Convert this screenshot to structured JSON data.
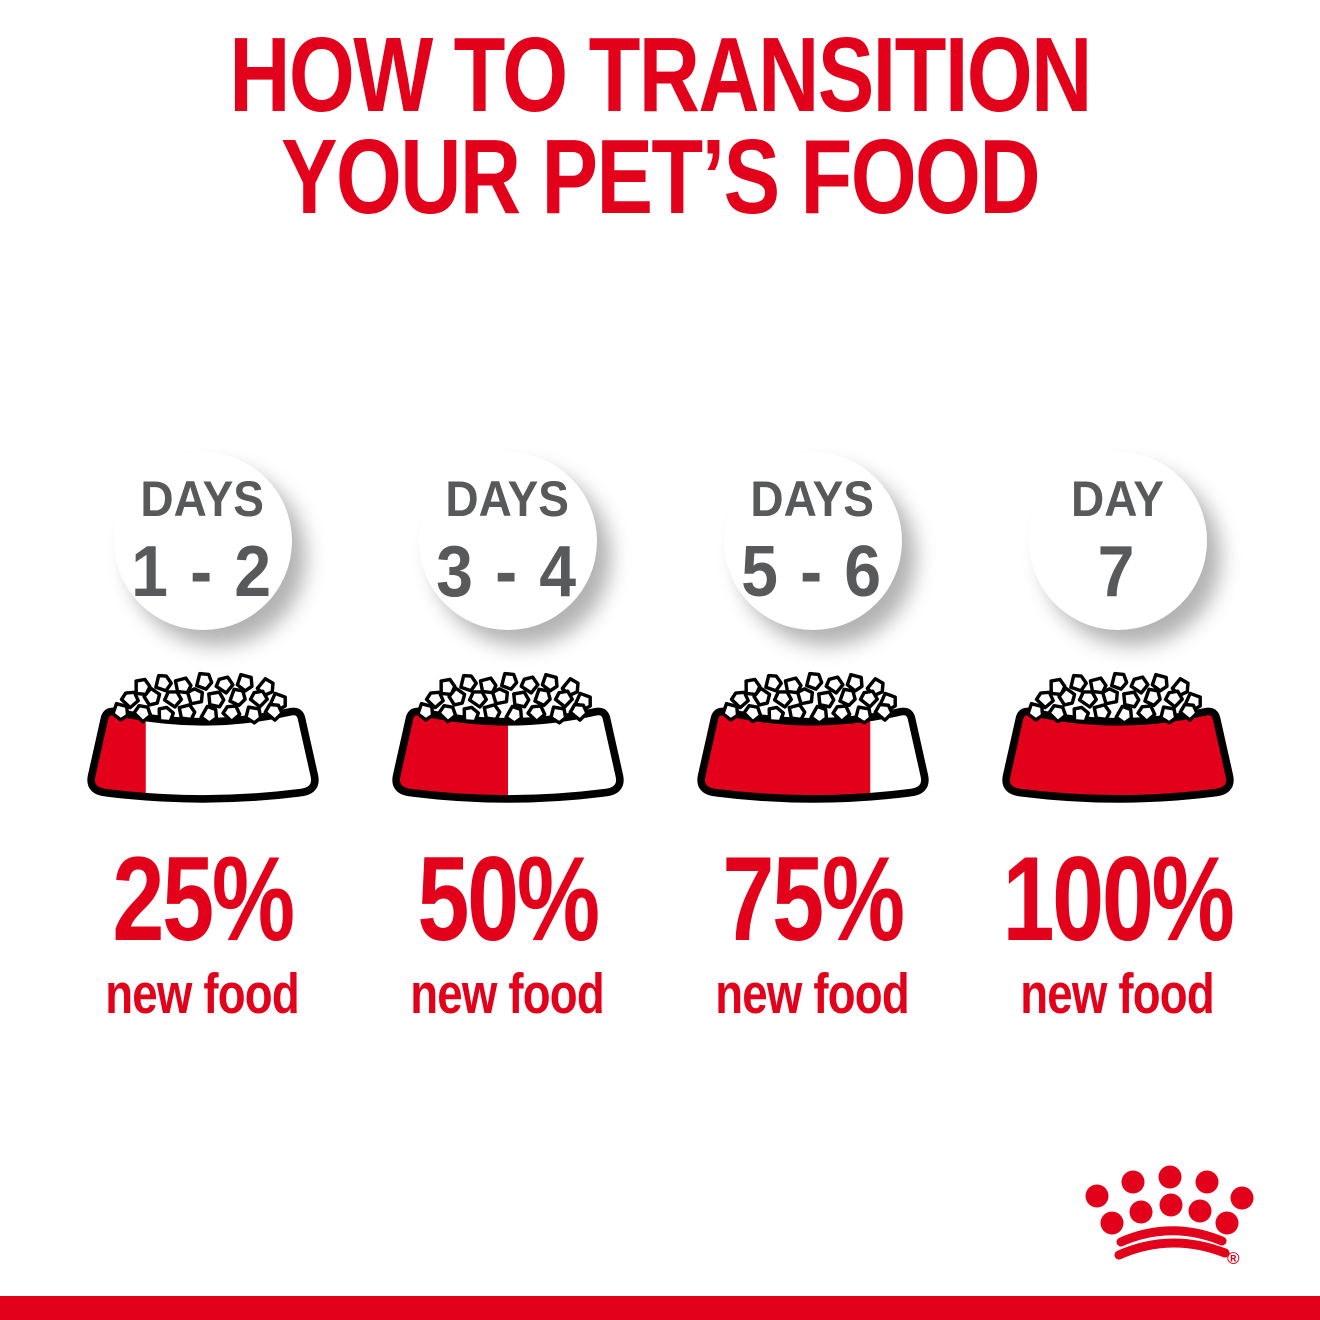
{
  "title": {
    "line1": "HOW TO TRANSITION",
    "line2": "YOUR PET’S FOOD"
  },
  "columns": [
    {
      "day_label": "DAYS",
      "day_value": "1 - 2",
      "percent": "25%",
      "percent_value": 25,
      "caption": "new food"
    },
    {
      "day_label": "DAYS",
      "day_value": "3 - 4",
      "percent": "50%",
      "percent_value": 50,
      "caption": "new food"
    },
    {
      "day_label": "DAYS",
      "day_value": "5 - 6",
      "percent": "75%",
      "percent_value": 75,
      "caption": "new food"
    },
    {
      "day_label": "DAY",
      "day_value": "7",
      "percent": "100%",
      "percent_value": 100,
      "caption": "new food"
    }
  ],
  "footer": {
    "brand_icon": "royal-canin-crown-icon",
    "registered_mark": "®"
  },
  "colors": {
    "red": "#E2001A",
    "gray": "#58595B",
    "outline": "#000000",
    "background": "#FFFFFF"
  }
}
